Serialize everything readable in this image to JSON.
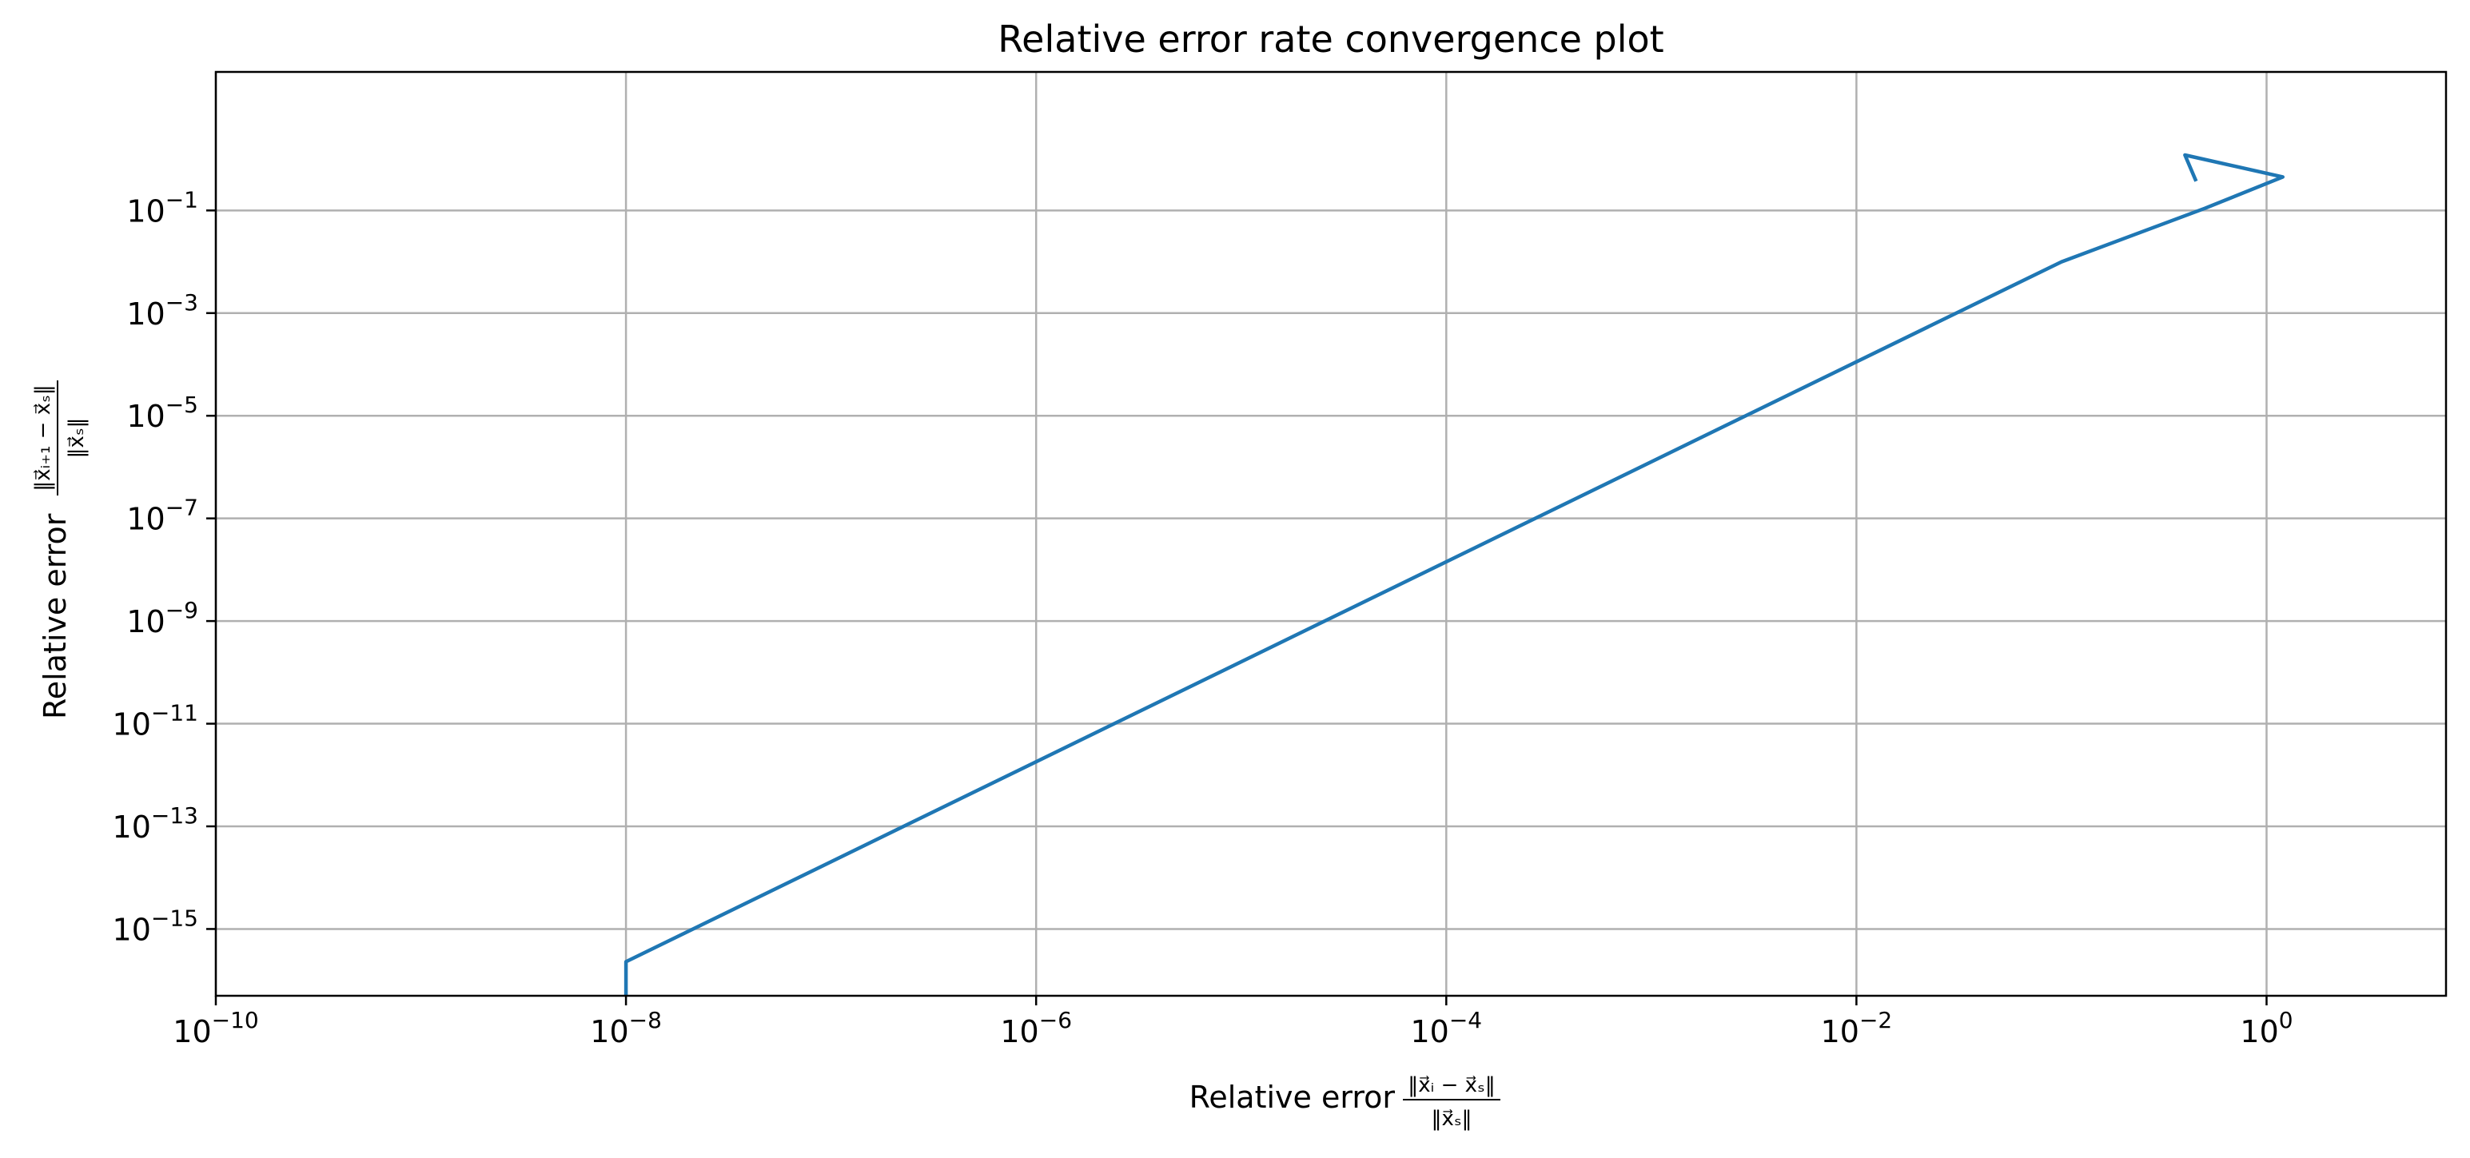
{
  "chart_data": {
    "type": "line",
    "title": "Relative error rate convergence plot",
    "xlabel": {
      "prefix": "Relative error",
      "numerator": "‖x⃗ᵢ − x⃗ₛ‖",
      "denominator": "‖x⃗ₛ‖"
    },
    "ylabel": {
      "prefix": "Relative error",
      "numerator": "‖x⃗ᵢ₊₁ − x⃗ₛ‖",
      "denominator": "‖x⃗ₛ‖"
    },
    "x_scale": "log",
    "y_scale": "log",
    "xlim": [
      1e-10,
      7.5
    ],
    "ylim": [
      5e-17,
      50
    ],
    "grid": true,
    "line_color": "#1f77b4",
    "x_ticks": [
      {
        "value": 1e-10,
        "base": "10",
        "exp": "−10"
      },
      {
        "value": 1e-08,
        "base": "10",
        "exp": "−8"
      },
      {
        "value": 1e-06,
        "base": "10",
        "exp": "−6"
      },
      {
        "value": 0.0001,
        "base": "10",
        "exp": "−4"
      },
      {
        "value": 0.01,
        "base": "10",
        "exp": "−2"
      },
      {
        "value": 1,
        "base": "10",
        "exp": "0"
      }
    ],
    "y_ticks": [
      {
        "value": 1e-15,
        "base": "10",
        "exp": "−15"
      },
      {
        "value": 1e-13,
        "base": "10",
        "exp": "−13"
      },
      {
        "value": 1e-11,
        "base": "10",
        "exp": "−11"
      },
      {
        "value": 1e-09,
        "base": "10",
        "exp": "−9"
      },
      {
        "value": 1e-07,
        "base": "10",
        "exp": "−7"
      },
      {
        "value": 1e-05,
        "base": "10",
        "exp": "−5"
      },
      {
        "value": 0.001,
        "base": "10",
        "exp": "−3"
      },
      {
        "value": 0.1,
        "base": "10",
        "exp": "−1"
      }
    ],
    "series": [
      {
        "x": [
          0.45,
          0.4,
          1.2,
          0.5,
          0.1,
          1e-08,
          1e-08
        ],
        "y": [
          0.4,
          1.2,
          0.45,
          0.11,
          0.01,
          2.3e-16,
          1e-17
        ]
      }
    ]
  }
}
